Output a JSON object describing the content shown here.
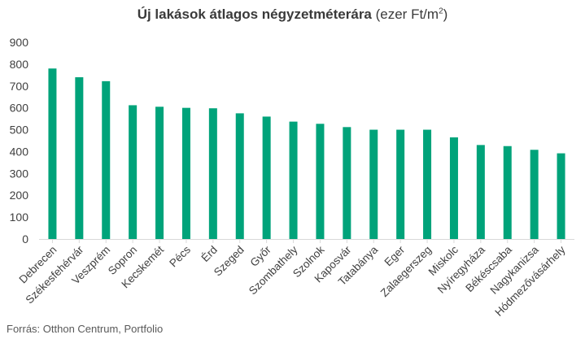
{
  "title": {
    "bold": "Új lakások átlagos négyzetméterára",
    "normal": " (ezer Ft/m",
    "sup": "2",
    "close": ")"
  },
  "source": "Forrás: Otthon Centrum, Portfolio",
  "colors": {
    "bar": "#00a37a",
    "axis": "#d9d9d9"
  },
  "chart_data": {
    "type": "bar",
    "title": "Új lakások átlagos négyzetméterára (ezer Ft/m2)",
    "xlabel": "",
    "ylabel": "",
    "ylim": [
      0,
      900
    ],
    "yticks": [
      0,
      100,
      200,
      300,
      400,
      500,
      600,
      700,
      800,
      900
    ],
    "grid": false,
    "categories": [
      "Debrecen",
      "Székesfehérvár",
      "Veszprém",
      "Sopron",
      "Kecskemét",
      "Pécs",
      "Érd",
      "Szeged",
      "Győr",
      "Szombathely",
      "Szolnok",
      "Kaposvár",
      "Tatabánya",
      "Eger",
      "Zalaegerszeg",
      "Miskolc",
      "Nyíregyháza",
      "Békéscsaba",
      "Nagykanizsa",
      "Hódmezővásárhely"
    ],
    "values": [
      780,
      740,
      722,
      612,
      605,
      600,
      598,
      575,
      560,
      537,
      527,
      512,
      500,
      500,
      500,
      465,
      430,
      425,
      408,
      392
    ]
  }
}
